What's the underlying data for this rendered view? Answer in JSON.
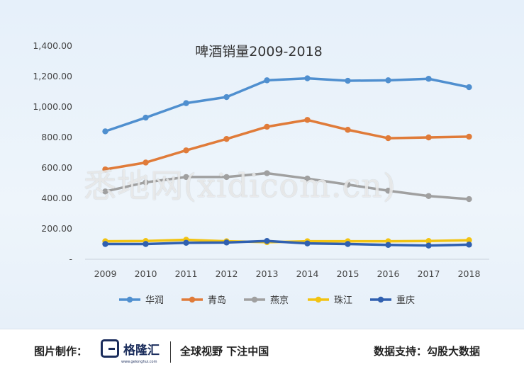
{
  "chart_data": {
    "type": "line",
    "title": "啤酒销量2009-2018",
    "categories": [
      "2009",
      "2010",
      "2011",
      "2012",
      "2013",
      "2014",
      "2015",
      "2016",
      "2017",
      "2018"
    ],
    "y_tick_labels": [
      "-",
      "200.00",
      "400.00",
      "600.00",
      "800.00",
      "1,000.00",
      "1,200.00",
      "1,400.00"
    ],
    "ylim": [
      0,
      1400
    ],
    "legend_position": "bottom",
    "series": [
      {
        "name": "华润",
        "color": "#4f8fcf",
        "values": [
          840,
          930,
          1025,
          1065,
          1175,
          1188,
          1172,
          1175,
          1185,
          1130
        ]
      },
      {
        "name": "青岛",
        "color": "#e07b39",
        "values": [
          590,
          635,
          715,
          790,
          870,
          915,
          850,
          795,
          800,
          805
        ]
      },
      {
        "name": "燕京",
        "color": "#a0a0a0",
        "values": [
          445,
          505,
          540,
          540,
          565,
          530,
          490,
          450,
          415,
          395
        ]
      },
      {
        "name": "珠江",
        "color": "#f2c311",
        "values": [
          118,
          120,
          128,
          118,
          112,
          118,
          118,
          118,
          120,
          125
        ]
      },
      {
        "name": "重庆",
        "color": "#3060b0",
        "values": [
          100,
          100,
          108,
          110,
          120,
          104,
          100,
          94,
          90,
          96
        ]
      }
    ]
  },
  "watermark": "悉地网(xidicom.cn)",
  "footer": {
    "left": "图片制作：",
    "logo_text": "格隆汇",
    "logo_sub": "www.gelonghui.com",
    "slogan": "全球视野 下注中国",
    "right": "数据支持：勾股大数据"
  }
}
